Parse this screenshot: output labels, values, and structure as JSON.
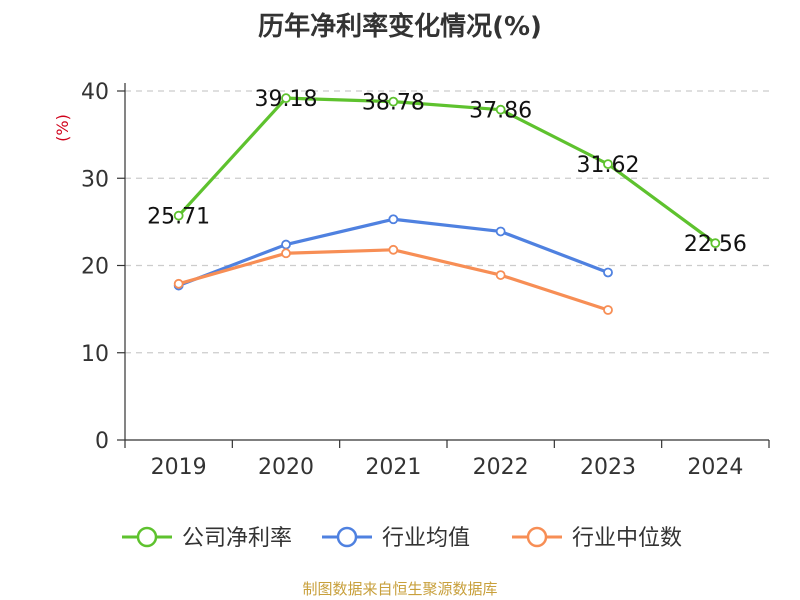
{
  "chart_data": {
    "type": "line",
    "title": "历年净利率变化情况(%)",
    "ylabel": "(%)",
    "xlabel": "",
    "categories": [
      "2019",
      "2020",
      "2021",
      "2022",
      "2023",
      "2024"
    ],
    "ylim": [
      0,
      40
    ],
    "yticks": [
      "0",
      "10",
      "20",
      "30",
      "40"
    ],
    "grid": true,
    "legend_position": "bottom",
    "series": [
      {
        "name": "公司净利率",
        "color": "#5ec22e",
        "values": [
          25.71,
          39.18,
          38.78,
          37.86,
          31.62,
          22.56
        ],
        "labels": [
          "25.71",
          "39.18",
          "38.78",
          "37.86",
          "31.62",
          "22.56"
        ]
      },
      {
        "name": "行业均值",
        "color": "#4f81e0",
        "values": [
          17.7,
          22.4,
          25.3,
          23.9,
          19.2,
          null
        ]
      },
      {
        "name": "行业中位数",
        "color": "#f78e55",
        "values": [
          17.9,
          21.4,
          21.8,
          18.9,
          14.9,
          null
        ]
      }
    ],
    "source": "制图数据来自恒生聚源数据库"
  }
}
